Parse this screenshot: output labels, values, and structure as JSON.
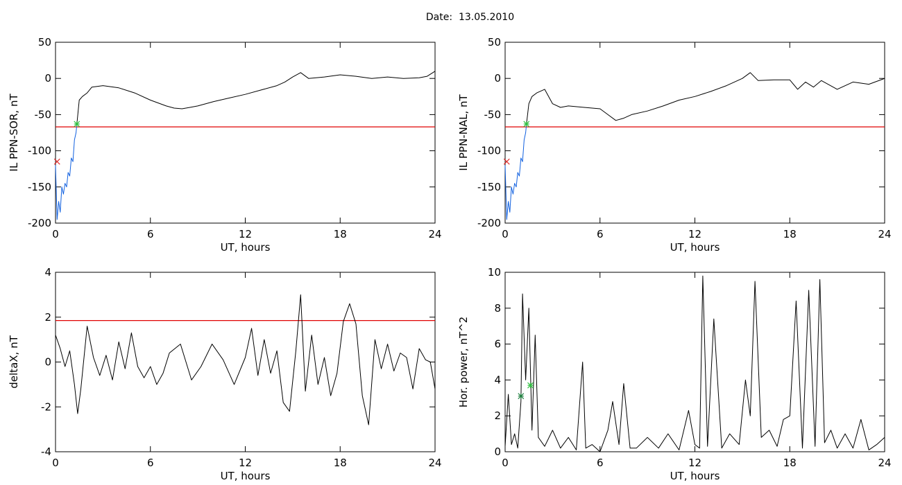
{
  "figure": {
    "title": "Date:  13.05.2010"
  },
  "chart_data": [
    {
      "type": "line",
      "ylabel": "IL PPN-SOR, nT",
      "xlabel": "UT, hours",
      "xlim": [
        0,
        24
      ],
      "ylim": [
        -200,
        50
      ],
      "xticks": [
        0,
        6,
        12,
        18,
        24
      ],
      "yticks": [
        -200,
        -150,
        -100,
        -50,
        0,
        50
      ],
      "grid": false,
      "threshold": {
        "value": -67,
        "color": "#e00000"
      },
      "markers": [
        {
          "x": 1.35,
          "y": -63,
          "color": "#30c040",
          "symbol": "asterisk"
        },
        {
          "x": 0.1,
          "y": -115,
          "color": "#e02020",
          "symbol": "cross"
        }
      ],
      "series": [
        {
          "color": "#1060e0",
          "x": [
            0.0,
            0.1,
            0.2,
            0.3,
            0.4,
            0.5,
            0.6,
            0.7,
            0.8,
            0.9,
            1.0,
            1.1,
            1.2,
            1.3,
            1.35
          ],
          "y": [
            -120,
            -195,
            -170,
            -185,
            -150,
            -160,
            -145,
            -150,
            -130,
            -135,
            -110,
            -115,
            -85,
            -75,
            -63
          ]
        },
        {
          "color": "#000000",
          "x": [
            1.35,
            1.5,
            1.7,
            2.0,
            2.3,
            3.0,
            4.0,
            5.0,
            6.0,
            7.0,
            7.5,
            8.0,
            8.5,
            9.0,
            10.0,
            11.0,
            12.0,
            13.0,
            14.0,
            14.5,
            15.0,
            15.5,
            16.0,
            17.0,
            18.0,
            19.0,
            20.0,
            21.0,
            22.0,
            23.0,
            23.5,
            24.0
          ],
          "y": [
            -63,
            -30,
            -25,
            -20,
            -12,
            -10,
            -13,
            -20,
            -30,
            -38,
            -41,
            -42,
            -40,
            -38,
            -32,
            -27,
            -22,
            -16,
            -10,
            -5,
            2,
            8,
            0,
            2,
            5,
            3,
            0,
            2,
            0,
            1,
            3,
            10
          ]
        }
      ]
    },
    {
      "type": "line",
      "ylabel": "IL PPN-NAL, nT",
      "xlabel": "UT, hours",
      "xlim": [
        0,
        24
      ],
      "ylim": [
        -200,
        50
      ],
      "xticks": [
        0,
        6,
        12,
        18,
        24
      ],
      "yticks": [
        -200,
        -150,
        -100,
        -50,
        0,
        50
      ],
      "grid": false,
      "threshold": {
        "value": -67,
        "color": "#e00000"
      },
      "markers": [
        {
          "x": 1.35,
          "y": -63,
          "color": "#30c040",
          "symbol": "asterisk"
        },
        {
          "x": 0.1,
          "y": -115,
          "color": "#e02020",
          "symbol": "cross"
        }
      ],
      "series": [
        {
          "color": "#1060e0",
          "x": [
            0.0,
            0.1,
            0.2,
            0.3,
            0.4,
            0.5,
            0.6,
            0.7,
            0.8,
            0.9,
            1.0,
            1.1,
            1.2,
            1.3,
            1.35
          ],
          "y": [
            -120,
            -195,
            -170,
            -185,
            -150,
            -160,
            -145,
            -150,
            -130,
            -135,
            -110,
            -115,
            -85,
            -75,
            -63
          ]
        },
        {
          "color": "#000000",
          "x": [
            1.35,
            1.5,
            1.7,
            2.0,
            2.5,
            3.0,
            3.5,
            4.0,
            5.0,
            6.0,
            6.5,
            7.0,
            7.5,
            8.0,
            9.0,
            10.0,
            11.0,
            12.0,
            13.0,
            14.0,
            15.0,
            15.5,
            16.0,
            17.0,
            18.0,
            18.5,
            19.0,
            19.5,
            20.0,
            21.0,
            22.0,
            23.0,
            24.0
          ],
          "y": [
            -63,
            -35,
            -25,
            -20,
            -15,
            -35,
            -40,
            -38,
            -40,
            -42,
            -50,
            -58,
            -55,
            -50,
            -45,
            -38,
            -30,
            -25,
            -18,
            -10,
            0,
            8,
            -3,
            -2,
            -2,
            -15,
            -5,
            -12,
            -3,
            -15,
            -5,
            -8,
            0
          ]
        }
      ]
    },
    {
      "type": "line",
      "ylabel": "deltaX, nT",
      "xlabel": "UT, hours",
      "xlim": [
        0,
        24
      ],
      "ylim": [
        -4,
        4
      ],
      "xticks": [
        0,
        6,
        12,
        18,
        24
      ],
      "yticks": [
        -4,
        -2,
        0,
        2,
        4
      ],
      "grid": false,
      "threshold": {
        "value": 1.85,
        "color": "#e00000"
      },
      "markers": [],
      "series": [
        {
          "color": "#000000",
          "x": [
            0.0,
            0.3,
            0.6,
            0.9,
            1.2,
            1.4,
            1.6,
            2.0,
            2.4,
            2.8,
            3.2,
            3.6,
            4.0,
            4.4,
            4.8,
            5.2,
            5.6,
            6.0,
            6.4,
            6.8,
            7.2,
            7.9,
            8.6,
            9.2,
            9.9,
            10.6,
            11.3,
            12.0,
            12.4,
            12.8,
            13.2,
            13.6,
            14.0,
            14.4,
            14.8,
            15.2,
            15.5,
            15.8,
            16.2,
            16.6,
            17.0,
            17.4,
            17.8,
            18.2,
            18.6,
            19.0,
            19.4,
            19.8,
            20.2,
            20.6,
            21.0,
            21.4,
            21.8,
            22.2,
            22.6,
            23.0,
            23.4,
            23.7,
            24.0
          ],
          "y": [
            1.2,
            0.6,
            -0.2,
            0.5,
            -1.0,
            -2.3,
            -1.2,
            1.6,
            0.2,
            -0.6,
            0.3,
            -0.8,
            0.9,
            -0.3,
            1.3,
            -0.2,
            -0.7,
            -0.2,
            -1.0,
            -0.5,
            0.4,
            0.8,
            -0.8,
            -0.2,
            0.8,
            0.1,
            -1.0,
            0.2,
            1.5,
            -0.6,
            1.0,
            -0.5,
            0.5,
            -1.8,
            -2.2,
            0.5,
            3.0,
            -1.3,
            1.2,
            -1.0,
            0.2,
            -1.5,
            -0.5,
            1.8,
            2.6,
            1.7,
            -1.5,
            -2.8,
            1.0,
            -0.3,
            0.8,
            -0.4,
            0.4,
            0.2,
            -1.2,
            0.6,
            0.1,
            0.0,
            -1.2
          ]
        }
      ]
    },
    {
      "type": "line",
      "ylabel": "Hor. power, nT^2",
      "xlabel": "UT, hours",
      "xlim": [
        0,
        24
      ],
      "ylim": [
        0,
        10
      ],
      "xticks": [
        0,
        6,
        12,
        18,
        24
      ],
      "yticks": [
        0,
        2,
        4,
        6,
        8,
        10
      ],
      "grid": false,
      "markers": [
        {
          "x": 1.0,
          "y": 3.1,
          "color": "#208040",
          "symbol": "asterisk"
        },
        {
          "x": 1.6,
          "y": 3.7,
          "color": "#30c040",
          "symbol": "asterisk"
        }
      ],
      "series": [
        {
          "color": "#000000",
          "x": [
            0.0,
            0.2,
            0.4,
            0.6,
            0.8,
            1.0,
            1.1,
            1.3,
            1.5,
            1.7,
            1.9,
            2.1,
            2.5,
            3.0,
            3.5,
            4.0,
            4.5,
            4.9,
            5.1,
            5.5,
            6.0,
            6.5,
            6.8,
            7.2,
            7.5,
            7.9,
            8.3,
            9.0,
            9.7,
            10.3,
            11.0,
            11.6,
            12.0,
            12.3,
            12.5,
            12.8,
            13.2,
            13.7,
            14.2,
            14.8,
            15.2,
            15.5,
            15.8,
            16.2,
            16.7,
            17.2,
            17.6,
            18.0,
            18.4,
            18.8,
            19.2,
            19.6,
            19.9,
            20.2,
            20.6,
            21.0,
            21.5,
            22.0,
            22.5,
            23.0,
            23.5,
            24.0
          ],
          "y": [
            0.3,
            3.2,
            0.4,
            1.0,
            0.2,
            2.8,
            8.8,
            4.0,
            8.0,
            1.2,
            6.5,
            0.8,
            0.3,
            1.2,
            0.2,
            0.8,
            0.1,
            5.0,
            0.2,
            0.4,
            0.0,
            1.2,
            2.8,
            0.4,
            3.8,
            0.2,
            0.2,
            0.8,
            0.2,
            1.0,
            0.1,
            2.3,
            0.4,
            0.2,
            9.8,
            0.3,
            7.4,
            0.2,
            1.0,
            0.4,
            4.0,
            2.0,
            9.5,
            0.8,
            1.2,
            0.3,
            1.8,
            2.0,
            8.4,
            0.2,
            9.0,
            0.3,
            9.6,
            0.5,
            1.2,
            0.2,
            1.0,
            0.2,
            1.8,
            0.1,
            0.4,
            0.8
          ]
        }
      ]
    }
  ]
}
